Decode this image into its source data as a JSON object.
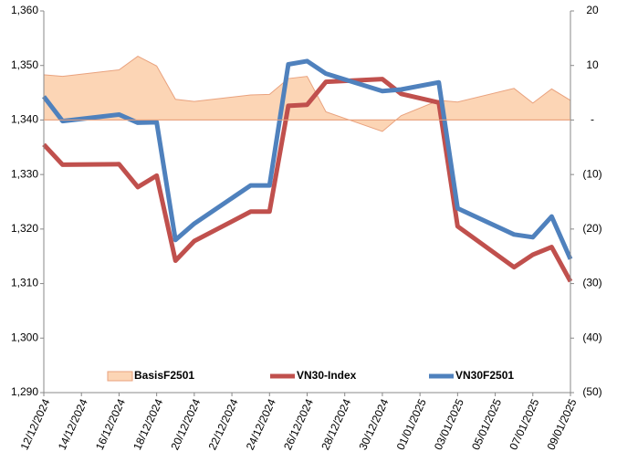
{
  "chart_data": {
    "type": "line",
    "x": [
      "12/12/2024",
      "13/12/2024",
      "16/12/2024",
      "17/12/2024",
      "18/12/2024",
      "19/12/2024",
      "20/12/2024",
      "23/12/2024",
      "24/12/2024",
      "25/12/2024",
      "26/12/2024",
      "27/12/2024",
      "30/12/2024",
      "31/12/2024",
      "02/01/2025",
      "03/01/2025",
      "06/01/2025",
      "07/01/2025",
      "08/01/2025",
      "09/01/2025"
    ],
    "xlim": [
      "12/12/2024",
      "09/01/2025"
    ],
    "xticks": [
      "12/12/2024",
      "14/12/2024",
      "16/12/2024",
      "18/12/2024",
      "20/12/2024",
      "22/12/2024",
      "24/12/2024",
      "26/12/2024",
      "28/12/2024",
      "30/12/2024",
      "01/01/2025",
      "03/01/2025",
      "05/01/2025",
      "07/01/2025",
      "09/01/2025"
    ],
    "ylim": [
      1290,
      1360
    ],
    "yticks": [
      {
        "value": 1290,
        "label": "1,290"
      },
      {
        "value": 1300,
        "label": "1,300"
      },
      {
        "value": 1310,
        "label": "1,310"
      },
      {
        "value": 1320,
        "label": "1,320"
      },
      {
        "value": 1330,
        "label": "1,330"
      },
      {
        "value": 1340,
        "label": "1,340"
      },
      {
        "value": 1350,
        "label": "1,350"
      },
      {
        "value": 1360,
        "label": "1,360"
      }
    ],
    "y2lim": [
      -50,
      20
    ],
    "y2ticks": [
      {
        "value": -50,
        "label": "(50)"
      },
      {
        "value": -40,
        "label": "(40)"
      },
      {
        "value": -30,
        "label": "(30)"
      },
      {
        "value": -20,
        "label": "(20)"
      },
      {
        "value": -10,
        "label": "(10)"
      },
      {
        "value": 0,
        "label": "-"
      },
      10,
      20
    ],
    "series": [
      {
        "name": "BasisF2501",
        "type": "area",
        "axis": "y2",
        "color": "#fcd5b5",
        "values": [
          8.3,
          8.0,
          9.2,
          11.7,
          9.9,
          3.8,
          3.4,
          4.6,
          4.7,
          7.6,
          8.0,
          1.5,
          -2.1,
          0.8,
          3.6,
          3.3,
          5.8,
          3.1,
          5.7,
          3.6
        ]
      },
      {
        "name": "VN30-Index",
        "type": "line",
        "color": "#c0504d",
        "values": [
          1335.5,
          1331.8,
          1331.9,
          1327.7,
          1329.8,
          1314.2,
          1317.8,
          1323.2,
          1323.2,
          1342.6,
          1342.8,
          1347.0,
          1347.5,
          1344.8,
          1343.2,
          1320.5,
          1313.0,
          1315.3,
          1316.7,
          1310.4
        ]
      },
      {
        "name": "VN30F2501",
        "type": "line",
        "color": "#4f81bd",
        "values": [
          1344.3,
          1339.8,
          1341.0,
          1339.5,
          1339.6,
          1318.0,
          1321.0,
          1328.0,
          1328.0,
          1350.2,
          1350.8,
          1348.5,
          1345.3,
          1345.6,
          1346.9,
          1323.8,
          1319.0,
          1318.5,
          1322.3,
          1314.5
        ]
      }
    ]
  }
}
